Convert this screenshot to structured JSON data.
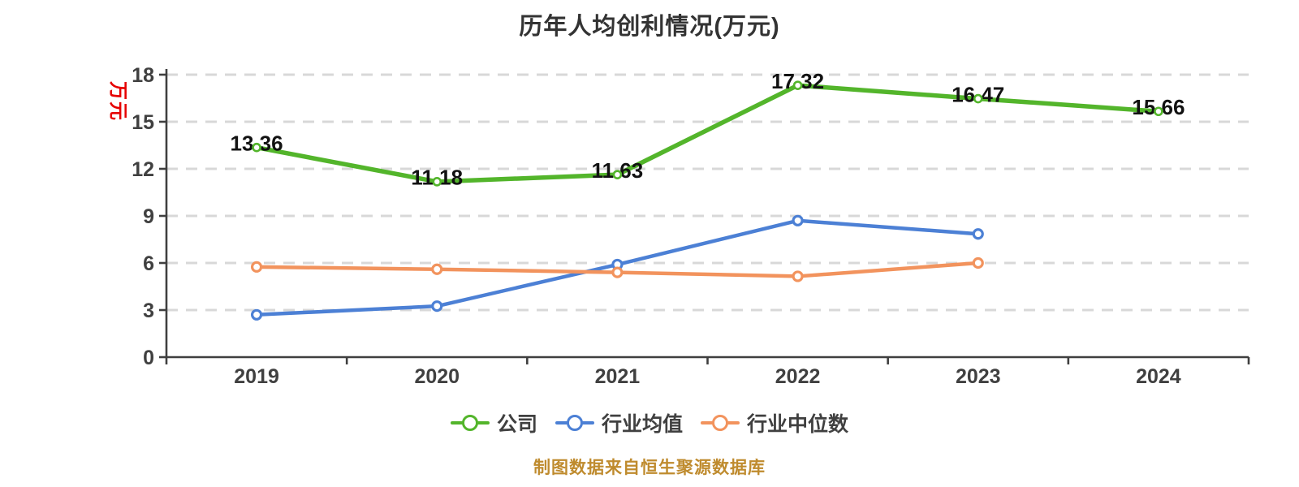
{
  "chart": {
    "title": "历年人均创利情况(万元)",
    "y_axis_name": "万元",
    "footer": "制图数据来自恒生聚源数据库"
  },
  "chart_data": {
    "type": "line",
    "title": "历年人均创利情况(万元)",
    "y_axis_label": "万元",
    "categories": [
      "2019",
      "2020",
      "2021",
      "2022",
      "2023",
      "2024"
    ],
    "series": [
      {
        "key": "company",
        "name": "公司",
        "color": "#53b52b",
        "values": [
          13.36,
          11.18,
          11.63,
          17.32,
          16.47,
          15.66
        ],
        "labels": [
          "13.36",
          "11.18",
          "11.63",
          "17.32",
          "16.47",
          "15.66"
        ],
        "show_labels": true
      },
      {
        "key": "industry-average",
        "name": "行业均值",
        "color": "#4c80d5",
        "values": [
          2.7,
          3.25,
          5.9,
          8.7,
          7.85,
          null
        ],
        "show_labels": false
      },
      {
        "key": "industry-median",
        "name": "行业中位数",
        "color": "#f2935d",
        "values": [
          5.75,
          5.6,
          5.4,
          5.15,
          6.0,
          null
        ],
        "show_labels": false
      }
    ],
    "y_axis": {
      "min": 0,
      "max": 18,
      "step": 3,
      "tick_labels": [
        "0",
        "3",
        "6",
        "9",
        "12",
        "15",
        "18"
      ]
    },
    "x_tick_labels": [
      "2019",
      "2020",
      "2021",
      "2022",
      "2023",
      "2024"
    ],
    "grid": {
      "horizontal_dashed": true,
      "vertical": false
    },
    "legend": {
      "position": "bottom",
      "entries": [
        "公司",
        "行业均值",
        "行业中位数"
      ]
    },
    "footer": "制图数据来自恒生聚源数据库"
  }
}
